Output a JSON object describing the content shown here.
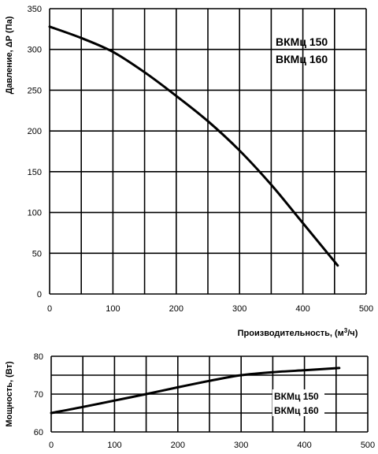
{
  "chart_data": [
    {
      "type": "line",
      "xlabel": "Производительность, (м³/ч)",
      "ylabel": "Давление, ΔР (Па)",
      "xlim": [
        0,
        500
      ],
      "ylim": [
        0,
        350
      ],
      "x_ticks": [
        0,
        100,
        200,
        300,
        400,
        500
      ],
      "y_ticks": [
        0,
        50,
        100,
        150,
        200,
        250,
        300,
        350
      ],
      "grid": true,
      "series": [
        {
          "name": "ВКМц 150 / ВКМц 160",
          "x": [
            0,
            50,
            100,
            150,
            200,
            250,
            300,
            350,
            400,
            455
          ],
          "y": [
            328,
            314,
            297,
            272,
            243,
            212,
            176,
            134,
            87,
            35
          ]
        }
      ],
      "labels": [
        "ВКМц 150",
        "ВКМц 160"
      ]
    },
    {
      "type": "line",
      "xlabel": "",
      "ylabel": "Мощность, (Вт)",
      "xlim": [
        0,
        500
      ],
      "ylim": [
        60,
        80
      ],
      "x_ticks": [
        0,
        100,
        200,
        300,
        400,
        500
      ],
      "y_ticks": [
        60,
        70,
        80
      ],
      "grid": true,
      "series": [
        {
          "name": "ВКМц 150 / ВКМц 160",
          "x": [
            0,
            50,
            100,
            150,
            200,
            250,
            300,
            350,
            400,
            455
          ],
          "y": [
            65,
            66.6,
            68.3,
            70,
            71.8,
            73.5,
            75,
            75.8,
            76.3,
            76.9
          ]
        }
      ],
      "labels": [
        "ВКМц 150",
        "ВКМц 160"
      ]
    }
  ]
}
